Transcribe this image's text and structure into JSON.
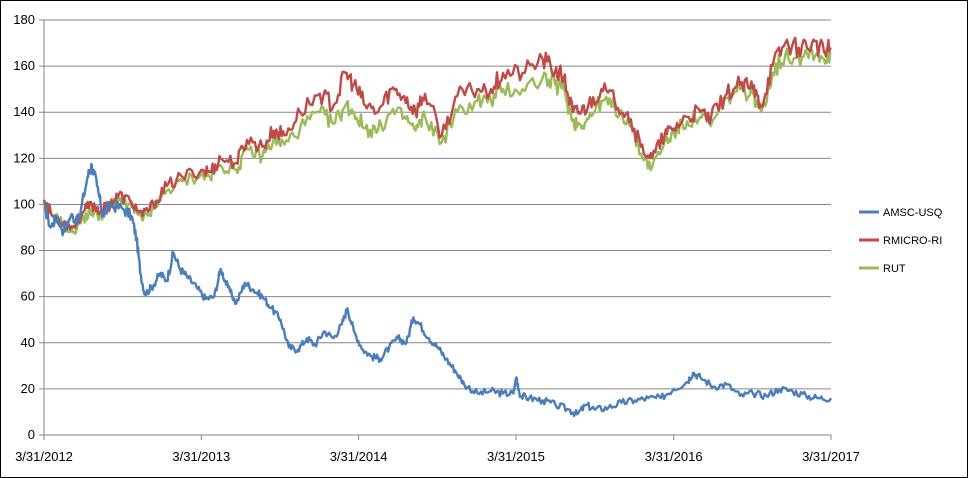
{
  "chart_data": {
    "type": "line",
    "title": "",
    "xlabel": "",
    "ylabel": "",
    "ylim": [
      0,
      180
    ],
    "yticks": [
      0,
      20,
      40,
      60,
      80,
      100,
      120,
      140,
      160,
      180
    ],
    "xlim": [
      "2012-03-31",
      "2017-03-31"
    ],
    "xticks": [
      "2012-03-31",
      "2013-03-31",
      "2014-03-31",
      "2015-03-31",
      "2016-03-31",
      "2017-03-31"
    ],
    "xtick_labels": [
      "3/31/2012",
      "3/31/2013",
      "3/31/2014",
      "3/31/2015",
      "3/31/2016",
      "3/31/2017"
    ],
    "grid": "horizontal",
    "legend_position": "right",
    "series": [
      {
        "name": "AMSC-USQ",
        "color": "#4a7ebb",
        "points": [
          [
            "2012-03-31",
            100
          ],
          [
            "2012-04-15",
            90
          ],
          [
            "2012-05-01",
            95
          ],
          [
            "2012-05-15",
            88
          ],
          [
            "2012-06-01",
            95
          ],
          [
            "2012-06-20",
            93
          ],
          [
            "2012-07-10",
            112
          ],
          [
            "2012-07-20",
            117
          ],
          [
            "2012-08-01",
            108
          ],
          [
            "2012-08-15",
            95
          ],
          [
            "2012-09-01",
            100
          ],
          [
            "2012-10-01",
            98
          ],
          [
            "2012-10-20",
            95
          ],
          [
            "2012-11-01",
            85
          ],
          [
            "2012-11-10",
            70
          ],
          [
            "2012-11-20",
            61
          ],
          [
            "2012-12-10",
            65
          ],
          [
            "2012-12-25",
            70
          ],
          [
            "2013-01-10",
            67
          ],
          [
            "2013-01-25",
            79
          ],
          [
            "2013-02-10",
            72
          ],
          [
            "2013-03-01",
            68
          ],
          [
            "2013-03-20",
            64
          ],
          [
            "2013-04-10",
            59
          ],
          [
            "2013-04-30",
            60
          ],
          [
            "2013-05-15",
            72
          ],
          [
            "2013-06-01",
            64
          ],
          [
            "2013-06-20",
            57
          ],
          [
            "2013-07-10",
            66
          ],
          [
            "2013-07-30",
            63
          ],
          [
            "2013-08-20",
            60
          ],
          [
            "2013-09-10",
            55
          ],
          [
            "2013-10-01",
            50
          ],
          [
            "2013-10-20",
            38
          ],
          [
            "2013-11-10",
            37
          ],
          [
            "2013-12-01",
            42
          ],
          [
            "2013-12-20",
            39
          ],
          [
            "2014-01-10",
            45
          ],
          [
            "2014-02-01",
            42
          ],
          [
            "2014-02-20",
            48
          ],
          [
            "2014-03-05",
            55
          ],
          [
            "2014-03-20",
            45
          ],
          [
            "2014-04-10",
            37
          ],
          [
            "2014-05-01",
            34
          ],
          [
            "2014-05-20",
            33
          ],
          [
            "2014-06-10",
            38
          ],
          [
            "2014-06-30",
            42
          ],
          [
            "2014-07-20",
            40
          ],
          [
            "2014-08-05",
            51
          ],
          [
            "2014-08-20",
            48
          ],
          [
            "2014-09-10",
            42
          ],
          [
            "2014-10-01",
            38
          ],
          [
            "2014-10-20",
            33
          ],
          [
            "2014-11-10",
            28
          ],
          [
            "2014-12-01",
            22
          ],
          [
            "2015-01-01",
            18
          ],
          [
            "2015-02-01",
            19
          ],
          [
            "2015-03-01",
            18
          ],
          [
            "2015-03-25",
            18
          ],
          [
            "2015-04-01",
            25
          ],
          [
            "2015-04-10",
            17
          ],
          [
            "2015-05-01",
            16
          ],
          [
            "2015-06-01",
            15
          ],
          [
            "2015-07-01",
            13
          ],
          [
            "2015-08-01",
            11
          ],
          [
            "2015-08-20",
            9
          ],
          [
            "2015-09-10",
            13
          ],
          [
            "2015-10-01",
            11
          ],
          [
            "2015-11-01",
            12
          ],
          [
            "2015-12-01",
            14
          ],
          [
            "2016-01-01",
            15
          ],
          [
            "2016-02-01",
            16
          ],
          [
            "2016-03-01",
            16
          ],
          [
            "2016-03-31",
            20
          ],
          [
            "2016-05-01",
            23
          ],
          [
            "2016-05-15",
            27
          ],
          [
            "2016-06-01",
            25
          ],
          [
            "2016-07-01",
            21
          ],
          [
            "2016-08-01",
            22
          ],
          [
            "2016-09-01",
            17
          ],
          [
            "2016-10-01",
            18
          ],
          [
            "2016-11-01",
            17
          ],
          [
            "2016-12-01",
            20
          ],
          [
            "2017-01-01",
            19
          ],
          [
            "2017-02-01",
            17
          ],
          [
            "2017-03-01",
            16
          ],
          [
            "2017-03-31",
            16
          ]
        ]
      },
      {
        "name": "RMICRO-RI",
        "color": "#be4b48",
        "points": [
          [
            "2012-03-31",
            102
          ],
          [
            "2012-04-20",
            95
          ],
          [
            "2012-05-15",
            92
          ],
          [
            "2012-06-05",
            90
          ],
          [
            "2012-07-01",
            97
          ],
          [
            "2012-07-20",
            100
          ],
          [
            "2012-08-10",
            97
          ],
          [
            "2012-09-01",
            100
          ],
          [
            "2012-09-20",
            104
          ],
          [
            "2012-10-20",
            101
          ],
          [
            "2012-11-15",
            95
          ],
          [
            "2012-12-10",
            100
          ],
          [
            "2013-01-10",
            108
          ],
          [
            "2013-02-15",
            112
          ],
          [
            "2013-03-31",
            115
          ],
          [
            "2013-04-20",
            114
          ],
          [
            "2013-05-15",
            120
          ],
          [
            "2013-06-20",
            118
          ],
          [
            "2013-07-15",
            128
          ],
          [
            "2013-08-20",
            125
          ],
          [
            "2013-09-15",
            132
          ],
          [
            "2013-10-10",
            130
          ],
          [
            "2013-11-15",
            140
          ],
          [
            "2013-12-31",
            148
          ],
          [
            "2014-02-01",
            143
          ],
          [
            "2014-03-01",
            157
          ],
          [
            "2014-03-20",
            152
          ],
          [
            "2014-04-15",
            143
          ],
          [
            "2014-05-15",
            140
          ],
          [
            "2014-06-15",
            150
          ],
          [
            "2014-07-15",
            147
          ],
          [
            "2014-08-10",
            140
          ],
          [
            "2014-09-01",
            148
          ],
          [
            "2014-10-10",
            130
          ],
          [
            "2014-11-15",
            147
          ],
          [
            "2014-12-31",
            150
          ],
          [
            "2015-02-01",
            150
          ],
          [
            "2015-03-01",
            157
          ],
          [
            "2015-04-15",
            157
          ],
          [
            "2015-06-01",
            163
          ],
          [
            "2015-06-30",
            158
          ],
          [
            "2015-07-20",
            155
          ],
          [
            "2015-08-10",
            140
          ],
          [
            "2015-08-25",
            140
          ],
          [
            "2015-09-15",
            143
          ],
          [
            "2015-10-15",
            150
          ],
          [
            "2015-11-15",
            145
          ],
          [
            "2015-12-15",
            140
          ],
          [
            "2016-01-15",
            125
          ],
          [
            "2016-02-10",
            120
          ],
          [
            "2016-03-10",
            130
          ],
          [
            "2016-03-31",
            133
          ],
          [
            "2016-05-01",
            138
          ],
          [
            "2016-06-01",
            140
          ],
          [
            "2016-06-25",
            137
          ],
          [
            "2016-08-01",
            148
          ],
          [
            "2016-09-01",
            152
          ],
          [
            "2016-10-01",
            150
          ],
          [
            "2016-10-20",
            143
          ],
          [
            "2016-11-15",
            160
          ],
          [
            "2016-12-15",
            170
          ],
          [
            "2017-01-15",
            168
          ],
          [
            "2017-02-15",
            170
          ],
          [
            "2017-03-15",
            166
          ],
          [
            "2017-03-31",
            168
          ]
        ]
      },
      {
        "name": "RUT",
        "color": "#9bbb59",
        "points": [
          [
            "2012-03-31",
            100
          ],
          [
            "2012-04-20",
            95
          ],
          [
            "2012-05-15",
            92
          ],
          [
            "2012-06-05",
            88
          ],
          [
            "2012-07-01",
            94
          ],
          [
            "2012-07-20",
            97
          ],
          [
            "2012-08-10",
            95
          ],
          [
            "2012-09-01",
            100
          ],
          [
            "2012-09-20",
            102
          ],
          [
            "2012-10-20",
            99
          ],
          [
            "2012-11-15",
            93
          ],
          [
            "2012-12-10",
            98
          ],
          [
            "2013-01-10",
            106
          ],
          [
            "2013-02-15",
            110
          ],
          [
            "2013-03-31",
            113
          ],
          [
            "2013-04-20",
            112
          ],
          [
            "2013-05-15",
            117
          ],
          [
            "2013-06-20",
            115
          ],
          [
            "2013-07-15",
            124
          ],
          [
            "2013-08-20",
            121
          ],
          [
            "2013-09-15",
            128
          ],
          [
            "2013-10-10",
            126
          ],
          [
            "2013-11-15",
            133
          ],
          [
            "2013-12-31",
            140
          ],
          [
            "2014-02-01",
            135
          ],
          [
            "2014-03-01",
            143
          ],
          [
            "2014-03-20",
            140
          ],
          [
            "2014-04-15",
            133
          ],
          [
            "2014-05-15",
            132
          ],
          [
            "2014-06-15",
            140
          ],
          [
            "2014-07-15",
            138
          ],
          [
            "2014-08-10",
            132
          ],
          [
            "2014-09-01",
            138
          ],
          [
            "2014-10-10",
            127
          ],
          [
            "2014-11-15",
            140
          ],
          [
            "2014-12-31",
            145
          ],
          [
            "2015-02-01",
            145
          ],
          [
            "2015-03-01",
            150
          ],
          [
            "2015-04-15",
            150
          ],
          [
            "2015-06-01",
            155
          ],
          [
            "2015-06-30",
            152
          ],
          [
            "2015-07-20",
            150
          ],
          [
            "2015-08-10",
            136
          ],
          [
            "2015-08-25",
            135
          ],
          [
            "2015-09-15",
            137
          ],
          [
            "2015-10-15",
            145
          ],
          [
            "2015-11-15",
            142
          ],
          [
            "2015-12-15",
            137
          ],
          [
            "2016-01-15",
            122
          ],
          [
            "2016-02-10",
            116
          ],
          [
            "2016-03-10",
            127
          ],
          [
            "2016-03-31",
            131
          ],
          [
            "2016-05-01",
            136
          ],
          [
            "2016-06-01",
            138
          ],
          [
            "2016-06-25",
            134
          ],
          [
            "2016-08-01",
            146
          ],
          [
            "2016-09-01",
            150
          ],
          [
            "2016-10-01",
            148
          ],
          [
            "2016-10-20",
            140
          ],
          [
            "2016-11-15",
            157
          ],
          [
            "2016-12-15",
            165
          ],
          [
            "2017-01-15",
            164
          ],
          [
            "2017-02-15",
            167
          ],
          [
            "2017-03-15",
            163
          ],
          [
            "2017-03-31",
            166
          ]
        ]
      }
    ]
  }
}
